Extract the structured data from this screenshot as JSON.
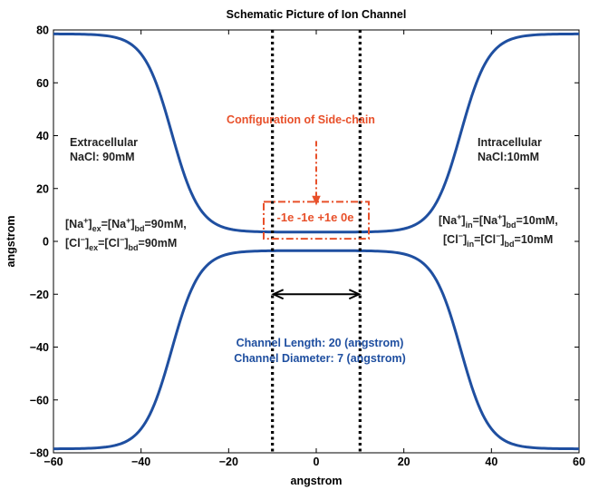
{
  "title": "Schematic Picture of Ion Channel",
  "xlabel": "angstrom",
  "ylabel": "angstrom",
  "axes": {
    "xlim": [
      -60,
      60
    ],
    "ylim": [
      -80,
      80
    ],
    "xticks": [
      -60,
      -40,
      -20,
      0,
      20,
      40,
      60
    ],
    "yticks": [
      -80,
      -60,
      -40,
      -20,
      0,
      20,
      40,
      60,
      80
    ],
    "grid": false
  },
  "colors": {
    "channel": "#1f4fa0",
    "boundary": "#000000",
    "config": "#e8502a",
    "arrow": "#000000"
  },
  "channel": {
    "length": 20,
    "radius": 3.5,
    "wall_edge": 78.5,
    "transition_center": 33,
    "transition_width": 3.2
  },
  "boundaries": {
    "x": [
      -10,
      10
    ]
  },
  "length_arrow": {
    "y": -20,
    "x1": -10,
    "x2": 10
  },
  "config_box": {
    "x1": -12,
    "x2": 12,
    "y1": 1,
    "y2": 15
  },
  "config_arrow": {
    "x": 0,
    "y_top": 38,
    "y_bottom": 14
  },
  "annotations": {
    "config_title": "Configuration of Side-chain",
    "charges": "-1e -1e +1e 0e",
    "extracellular": "Extracellular",
    "extracellular_conc": "NaCl: 90mM",
    "intracellular": "Intracellular",
    "intracellular_conc": "NaCl:10mM",
    "channel_length": "Channel Length: 20 (angstrom)",
    "channel_diameter": "Channel Diameter: 7 (angstrom)"
  },
  "ex_eq": {
    "na_line": {
      "ion": "Na",
      "charge": "+",
      "s1": "ex",
      "s2": "bd",
      "value": "=90mM,"
    },
    "cl_line": {
      "ion": "Cl",
      "charge": "−",
      "s1": "ex",
      "s2": "bd",
      "value": "=90mM"
    }
  },
  "in_eq": {
    "na_line": {
      "ion": "Na",
      "charge": "+",
      "s1": "in",
      "s2": "bd",
      "value": "=10mM,"
    },
    "cl_line": {
      "ion": "Cl",
      "charge": "−",
      "s1": "in",
      "s2": "bd",
      "value": "=10mM"
    }
  }
}
